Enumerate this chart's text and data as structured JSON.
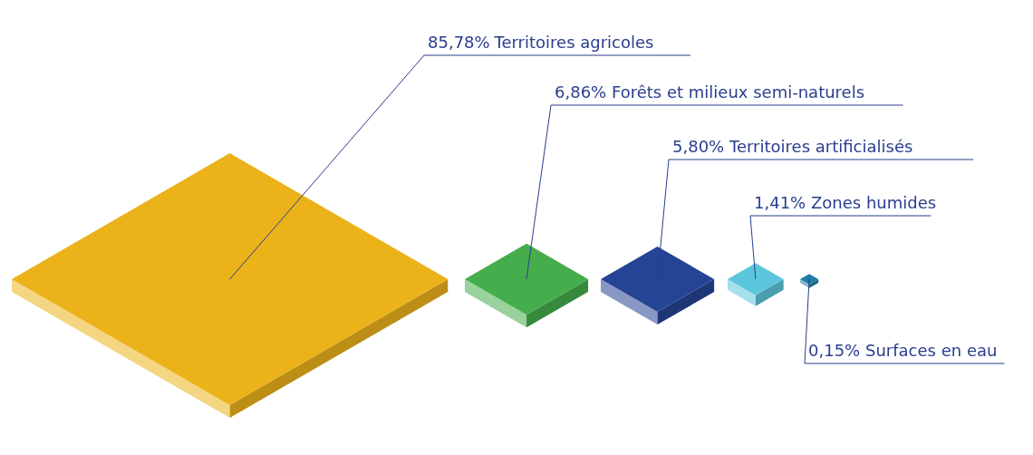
{
  "chart_data": {
    "type": "other",
    "categories": [
      "Territoires agricoles",
      "Forêts et milieux semi-naturels",
      "Territoires artificialisés",
      "Zones humides",
      "Surfaces en eau"
    ],
    "values": [
      85.78,
      6.86,
      5.8,
      1.41,
      0.15
    ],
    "value_labels": [
      "85,78%",
      "6,86%",
      "5,80%",
      "1,41%",
      "0,15%"
    ],
    "colors": [
      "#ebb21a",
      "#45ad4b",
      "#264494",
      "#5cc6dc",
      "#1f7fa6"
    ]
  }
}
